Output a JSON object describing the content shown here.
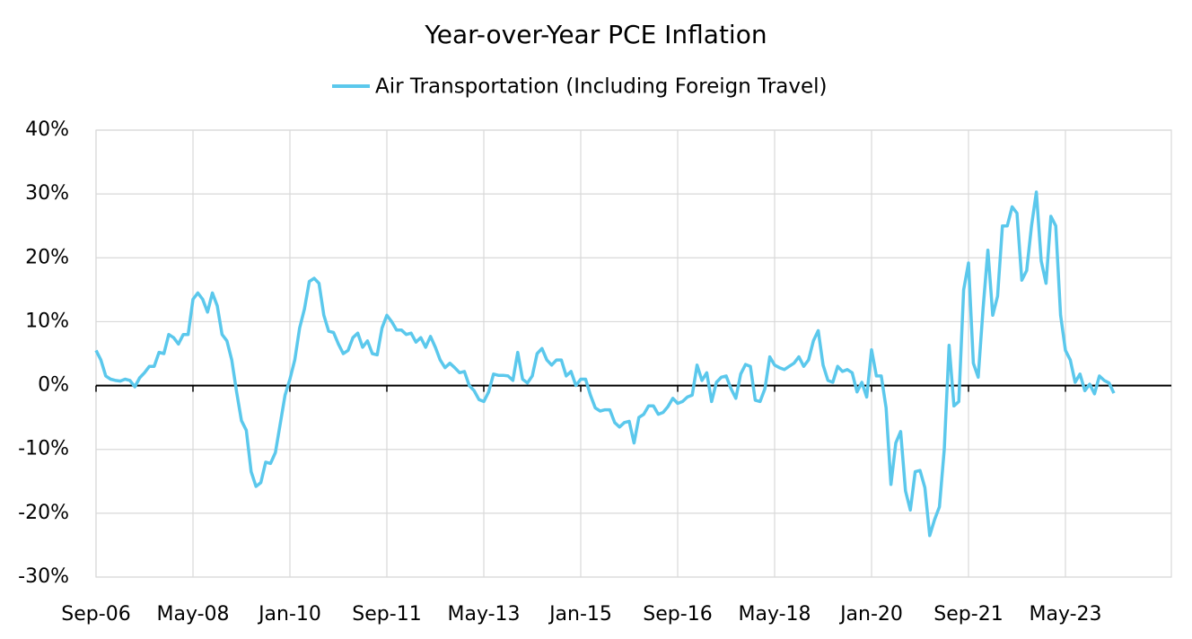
{
  "chart_data": {
    "type": "line",
    "title": "Year-over-Year PCE Inflation",
    "categories": [
      "Sep-06",
      null,
      null,
      null,
      null,
      null,
      null,
      null,
      null,
      null,
      null,
      null,
      null,
      null,
      null,
      null,
      null,
      null,
      null,
      null,
      "May-08",
      null,
      null,
      null,
      null,
      null,
      null,
      null,
      null,
      null,
      null,
      null,
      null,
      null,
      null,
      null,
      null,
      null,
      null,
      null,
      "Jan-10",
      null,
      null,
      null,
      null,
      null,
      null,
      null,
      null,
      null,
      null,
      null,
      null,
      null,
      null,
      null,
      null,
      null,
      null,
      null,
      "Sep-11",
      null,
      null,
      null,
      null,
      null,
      null,
      null,
      null,
      null,
      null,
      null,
      null,
      null,
      null,
      null,
      null,
      null,
      null,
      null,
      "May-13",
      null,
      null,
      null,
      null,
      null,
      null,
      null,
      null,
      null,
      null,
      null,
      null,
      null,
      null,
      null,
      null,
      null,
      null,
      null,
      "Jan-15",
      null,
      null,
      null,
      null,
      null,
      null,
      null,
      null,
      null,
      null,
      null,
      null,
      null,
      null,
      null,
      null,
      null,
      null,
      null,
      "Sep-16",
      null,
      null,
      null,
      null,
      null,
      null,
      null,
      null,
      null,
      null,
      null,
      null,
      null,
      null,
      null,
      null,
      null,
      null,
      null,
      "May-18",
      null,
      null,
      null,
      null,
      null,
      null,
      null,
      null,
      null,
      null,
      null,
      null,
      null,
      null,
      null,
      null,
      null,
      null,
      null,
      "Jan-20",
      null,
      null,
      null,
      null,
      null,
      null,
      null,
      null,
      null,
      null,
      null,
      null,
      null,
      null,
      null,
      null,
      null,
      null,
      null,
      "Sep-21",
      null,
      null,
      null,
      null,
      null,
      null,
      null,
      null,
      null,
      null,
      null,
      null,
      null,
      null,
      null,
      null,
      null,
      null,
      null,
      "May-23",
      null,
      null,
      null,
      null,
      null,
      null,
      null,
      null,
      null,
      null
    ],
    "series": [
      {
        "name": "Air Transportation (Including Foreign Travel)",
        "color": "#5bc8ec",
        "values": [
          5.5,
          4,
          1.5,
          1,
          0.8,
          0.7,
          1,
          0.8,
          -0.2,
          1.2,
          2,
          3,
          3,
          5.2,
          5,
          8,
          7.5,
          6.5,
          8,
          8,
          13.5,
          14.5,
          13.5,
          11.5,
          14.5,
          12.5,
          8,
          7,
          4,
          -1,
          -5.5,
          -7,
          -13.5,
          -15.8,
          -15.2,
          -12,
          -12.2,
          -10.5,
          -6,
          -1.5,
          1,
          4,
          9,
          12,
          16.3,
          16.8,
          16,
          11,
          8.5,
          8.3,
          6.5,
          5,
          5.5,
          7.5,
          8.2,
          6,
          7,
          5,
          4.8,
          9,
          11,
          10,
          8.7,
          8.7,
          8,
          8.2,
          6.8,
          7.5,
          6,
          7.7,
          6,
          4,
          2.8,
          3.5,
          2.8,
          2,
          2.2,
          0,
          -0.8,
          -2.2,
          -2.5,
          -1,
          1.8,
          1.6,
          1.6,
          1.5,
          0.8,
          5.2,
          1,
          0.4,
          1.5,
          5,
          5.8,
          4,
          3.2,
          4,
          4,
          1.5,
          2.2,
          0,
          1,
          1,
          -1.5,
          -3.5,
          -4,
          -3.8,
          -3.8,
          -5.8,
          -6.5,
          -5.8,
          -5.6,
          -9,
          -5,
          -4.5,
          -3.2,
          -3.2,
          -4.5,
          -4.2,
          -3.3,
          -2,
          -2.8,
          -2.5,
          -1.8,
          -1.5,
          3.2,
          0.8,
          2,
          -2.5,
          0.5,
          1.3,
          1.5,
          -0.5,
          -2,
          1.8,
          3.3,
          3,
          -2.3,
          -2.5,
          -0.5,
          4.5,
          3.2,
          2.8,
          2.5,
          3,
          3.5,
          4.5,
          3,
          4,
          7,
          8.6,
          3.2,
          0.8,
          0.5,
          3,
          2.2,
          2.5,
          2,
          -1,
          0.5,
          -1.8,
          5.6,
          1.5,
          1.5,
          -3.5,
          -15.5,
          -9,
          -7.2,
          -16.5,
          -19.5,
          -13.5,
          -13.3,
          -16,
          -23.5,
          -21,
          -19,
          -10,
          6.3,
          -3.2,
          -2.5,
          15,
          19.2,
          3.5,
          1.3,
          12,
          21.2,
          11,
          14,
          25,
          25,
          28,
          27,
          16.5,
          18,
          25,
          30.3,
          19.5,
          16,
          26.5,
          25,
          11,
          5.5,
          4,
          0.5,
          1.8,
          -0.8,
          0.2,
          -1.3,
          1.5,
          0.8,
          0.4,
          -1.2
        ]
      }
    ],
    "ylim": [
      -30,
      40
    ],
    "yticks": [
      {
        "value": -30,
        "label": "-30%"
      },
      {
        "value": -20,
        "label": "-20%"
      },
      {
        "value": -10,
        "label": "-10%"
      },
      {
        "value": 0,
        "label": "0%"
      },
      {
        "value": 10,
        "label": "10%"
      },
      {
        "value": 20,
        "label": "20%"
      },
      {
        "value": 30,
        "label": "30%"
      },
      {
        "value": 40,
        "label": "40%"
      }
    ],
    "grid": true,
    "legend": "top"
  }
}
